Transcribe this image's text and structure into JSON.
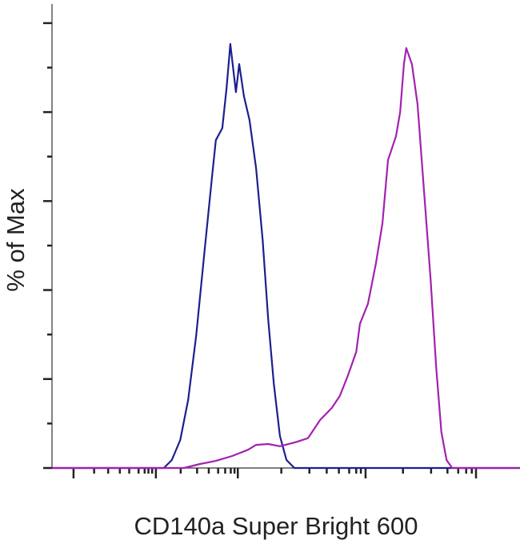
{
  "chart_data": {
    "type": "line",
    "xlabel": "CD140a Super Bright 600",
    "ylabel": "% of Max",
    "xlim": [
      0,
      100
    ],
    "ylim": [
      0,
      104.3
    ],
    "yticks": [
      0,
      20,
      40,
      60,
      80,
      100
    ],
    "yminorticks": [
      10,
      30,
      50,
      70,
      90
    ],
    "xticks": [
      4.6,
      22.2,
      39.7,
      67,
      90.6
    ],
    "xminorticks": [
      9,
      12,
      14.5,
      16.5,
      18.5,
      19.8,
      20.6,
      21.4,
      27.5,
      31,
      33.5,
      35.5,
      37,
      38.2,
      39,
      49,
      55,
      58.7,
      61.3,
      63.5,
      65,
      66,
      75,
      81,
      84.5,
      86.8,
      88.5,
      89.7
    ],
    "series": [
      {
        "name": "blue",
        "color": "#1c1f8f",
        "x": [
          0,
          23.9,
          25.6,
          27.4,
          29.1,
          30.8,
          32.5,
          34.2,
          35.0,
          36.4,
          37.3,
          38.1,
          38.8,
          39.3,
          40.0,
          41.0,
          42.2,
          43.6,
          45.0,
          46.2,
          47.4,
          48.7,
          50.1,
          51.8,
          100
        ],
        "values": [
          0,
          0,
          1.8,
          6.3,
          15.3,
          29.7,
          47.7,
          65.6,
          73.7,
          76.4,
          85.4,
          95.3,
          89.0,
          84.5,
          90.8,
          83.6,
          78.2,
          67.4,
          51.3,
          33.3,
          18.9,
          7.2,
          1.8,
          0,
          0
        ]
      },
      {
        "name": "magenta",
        "color": "#a321b0",
        "x": [
          0,
          28.2,
          31.6,
          35.0,
          38.5,
          41.9,
          43.6,
          46.2,
          48.7,
          52.1,
          54.7,
          57.3,
          59.8,
          61.5,
          63.2,
          65.0,
          65.8,
          67.5,
          69.2,
          70.6,
          71.8,
          73.5,
          74.4,
          75.2,
          75.7,
          76.9,
          78.1,
          79.5,
          80.9,
          82.1,
          83.2,
          84.3,
          85.5,
          100
        ],
        "values": [
          0,
          0,
          0.9,
          1.6,
          2.7,
          4.1,
          5.2,
          5.4,
          4.9,
          5.8,
          6.7,
          10.8,
          13.5,
          16.2,
          20.7,
          26.1,
          32.4,
          36.9,
          45.9,
          54.9,
          69.2,
          74.6,
          80.0,
          90.8,
          94.4,
          90.8,
          81.8,
          62.1,
          42.3,
          22.5,
          8.1,
          1.8,
          0,
          0
        ]
      }
    ]
  }
}
